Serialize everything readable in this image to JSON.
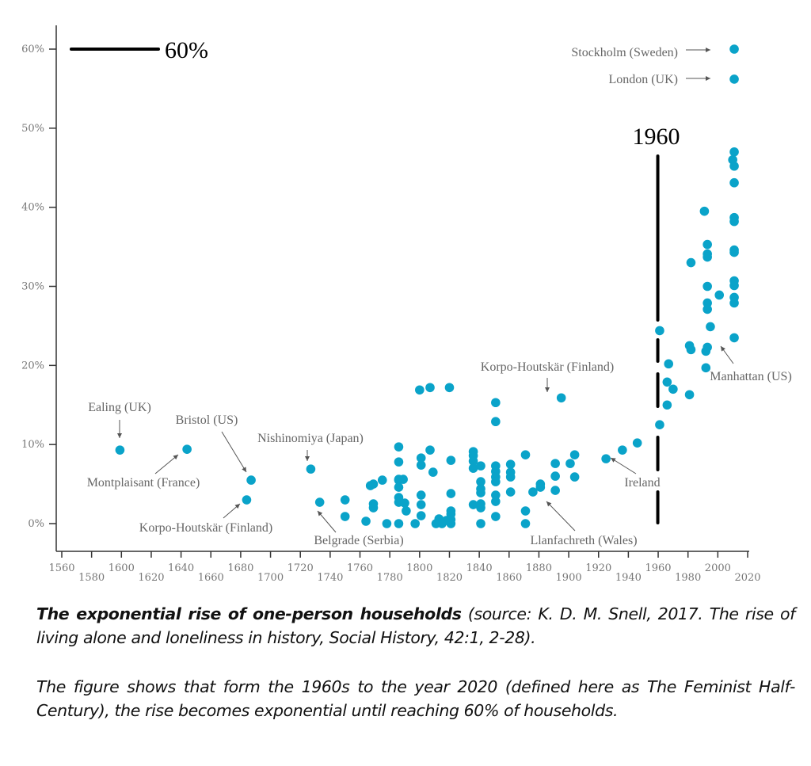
{
  "chart_data": {
    "type": "scatter",
    "title": "",
    "xlabel": "",
    "ylabel": "",
    "xlim": [
      1560,
      2020
    ],
    "ylim": [
      0,
      60
    ],
    "x_ticks": [
      1560,
      1580,
      1600,
      1620,
      1640,
      1660,
      1680,
      1700,
      1720,
      1740,
      1760,
      1780,
      1800,
      1820,
      1840,
      1860,
      1880,
      1900,
      1920,
      1940,
      1960,
      1980,
      2000,
      2020
    ],
    "y_ticks": [
      0,
      10,
      20,
      30,
      40,
      50,
      60
    ],
    "y_tick_labels": [
      "0%",
      "10%",
      "20%",
      "30%",
      "40%",
      "50%",
      "60%"
    ],
    "grid": false,
    "point_color": "#0aa3c9",
    "series": [
      {
        "name": "One-person households (%)",
        "points": [
          [
            1599,
            9.3
          ],
          [
            1644,
            9.4
          ],
          [
            1687,
            5.5
          ],
          [
            1684,
            3.0
          ],
          [
            1727,
            6.9
          ],
          [
            1733,
            2.7
          ],
          [
            1750,
            3.0
          ],
          [
            1750,
            0.9
          ],
          [
            1764,
            0.3
          ],
          [
            1767,
            4.8
          ],
          [
            1769,
            5.0
          ],
          [
            1769,
            2.5
          ],
          [
            1769,
            2.0
          ],
          [
            1775,
            5.5
          ],
          [
            1778,
            0.0
          ],
          [
            1786,
            9.7
          ],
          [
            1786,
            7.8
          ],
          [
            1786,
            5.6
          ],
          [
            1786,
            5.5
          ],
          [
            1786,
            4.6
          ],
          [
            1786,
            3.3
          ],
          [
            1786,
            2.7
          ],
          [
            1786,
            0.0
          ],
          [
            1789,
            5.6
          ],
          [
            1790,
            2.6
          ],
          [
            1791,
            1.6
          ],
          [
            1797,
            0.0
          ],
          [
            1800,
            16.9
          ],
          [
            1801,
            8.3
          ],
          [
            1801,
            7.4
          ],
          [
            1801,
            3.6
          ],
          [
            1801,
            2.4
          ],
          [
            1801,
            1.0
          ],
          [
            1807,
            17.2
          ],
          [
            1807,
            9.3
          ],
          [
            1809,
            6.5
          ],
          [
            1811,
            0.0
          ],
          [
            1813,
            0.6
          ],
          [
            1815,
            0.0
          ],
          [
            1818,
            0.4
          ],
          [
            1820,
            17.2
          ],
          [
            1821,
            8.0
          ],
          [
            1821,
            3.8
          ],
          [
            1821,
            1.6
          ],
          [
            1821,
            1.2
          ],
          [
            1821,
            0.5
          ],
          [
            1821,
            0.0
          ],
          [
            1836,
            9.1
          ],
          [
            1836,
            8.6
          ],
          [
            1836,
            7.9
          ],
          [
            1836,
            7.0
          ],
          [
            1836,
            2.4
          ],
          [
            1841,
            7.3
          ],
          [
            1841,
            5.3
          ],
          [
            1841,
            4.4
          ],
          [
            1841,
            3.9
          ],
          [
            1841,
            2.5
          ],
          [
            1841,
            2.0
          ],
          [
            1841,
            0.0
          ],
          [
            1851,
            15.3
          ],
          [
            1851,
            12.9
          ],
          [
            1851,
            7.3
          ],
          [
            1851,
            6.6
          ],
          [
            1851,
            5.9
          ],
          [
            1851,
            5.3
          ],
          [
            1851,
            3.6
          ],
          [
            1851,
            2.8
          ],
          [
            1851,
            0.9
          ],
          [
            1861,
            7.5
          ],
          [
            1861,
            6.5
          ],
          [
            1861,
            5.9
          ],
          [
            1861,
            4.0
          ],
          [
            1871,
            8.7
          ],
          [
            1871,
            1.6
          ],
          [
            1871,
            0.0
          ],
          [
            1876,
            4.0
          ],
          [
            1881,
            4.6
          ],
          [
            1881,
            5.0
          ],
          [
            1891,
            7.6
          ],
          [
            1891,
            6.0
          ],
          [
            1891,
            4.2
          ],
          [
            1895,
            15.9
          ],
          [
            1901,
            7.6
          ],
          [
            1904,
            8.7
          ],
          [
            1904,
            5.9
          ],
          [
            1925,
            8.2
          ],
          [
            1936,
            9.3
          ],
          [
            1946,
            10.2
          ],
          [
            1961,
            24.4
          ],
          [
            1961,
            12.5
          ],
          [
            1966,
            17.9
          ],
          [
            1967,
            20.2
          ],
          [
            1966,
            15.0
          ],
          [
            1970,
            17.0
          ],
          [
            1981,
            16.3
          ],
          [
            1981,
            22.5
          ],
          [
            1982,
            33.0
          ],
          [
            1982,
            22.0
          ],
          [
            1991,
            39.5
          ],
          [
            1993,
            35.3
          ],
          [
            1993,
            34.1
          ],
          [
            1993,
            33.7
          ],
          [
            1993,
            30.0
          ],
          [
            1993,
            27.9
          ],
          [
            1993,
            27.1
          ],
          [
            1993,
            22.3
          ],
          [
            1992,
            21.8
          ],
          [
            1992,
            19.7
          ],
          [
            1995,
            24.9
          ],
          [
            2001,
            28.9
          ],
          [
            2011,
            47.0
          ],
          [
            2010,
            46.0
          ],
          [
            2011,
            45.2
          ],
          [
            2011,
            43.1
          ],
          [
            2011,
            38.7
          ],
          [
            2011,
            38.2
          ],
          [
            2011,
            34.6
          ],
          [
            2011,
            34.3
          ],
          [
            2011,
            30.7
          ],
          [
            2011,
            30.1
          ],
          [
            2011,
            28.6
          ],
          [
            2011,
            27.9
          ],
          [
            2011,
            23.5
          ],
          [
            2011,
            60.0
          ],
          [
            2011,
            56.2
          ]
        ]
      }
    ],
    "annotations": [
      {
        "label": "Ealing (UK)",
        "x": 1599,
        "y": 9.3
      },
      {
        "label": "Montplaisant (France)",
        "x": 1644,
        "y": 9.4
      },
      {
        "label": "Bristol (US)",
        "x": 1687,
        "y": 5.5
      },
      {
        "label": "Korpo-Houtskär (Finland)",
        "x": 1684,
        "y": 3.0
      },
      {
        "label": "Nishinomiya (Japan)",
        "x": 1727,
        "y": 6.9
      },
      {
        "label": "Belgrade (Serbia)",
        "x": 1733,
        "y": 2.7
      },
      {
        "label": "Korpo-Houtskär (Finland)",
        "x": 1895,
        "y": 15.9
      },
      {
        "label": "Llanfachreth (Wales)",
        "x": 1891,
        "y": 4.2
      },
      {
        "label": "Ireland",
        "x": 1936,
        "y": 9.3
      },
      {
        "label": "Manhattan (US)",
        "x": 2011,
        "y": 23.5
      },
      {
        "label": "Stockholm (Sweden)",
        "x": 2011,
        "y": 60.0
      },
      {
        "label": "London (UK)",
        "x": 2011,
        "y": 56.2
      }
    ],
    "reference_lines": [
      {
        "type": "horizontal",
        "value": 60,
        "label": "60%"
      },
      {
        "type": "vertical",
        "value": 1960,
        "label": "1960"
      }
    ]
  },
  "caption": {
    "title_bold": "The exponential rise of one-person households",
    "source": " (source: K. D. M. Snell, 2017. The rise of living alone and loneliness in history, Social History, 42:1, 2-28).",
    "body": "The figure shows that form the 1960s to the year 2020 (defined here as The Feminist Half-Century), the rise becomes exponential until reaching 60% of households."
  }
}
